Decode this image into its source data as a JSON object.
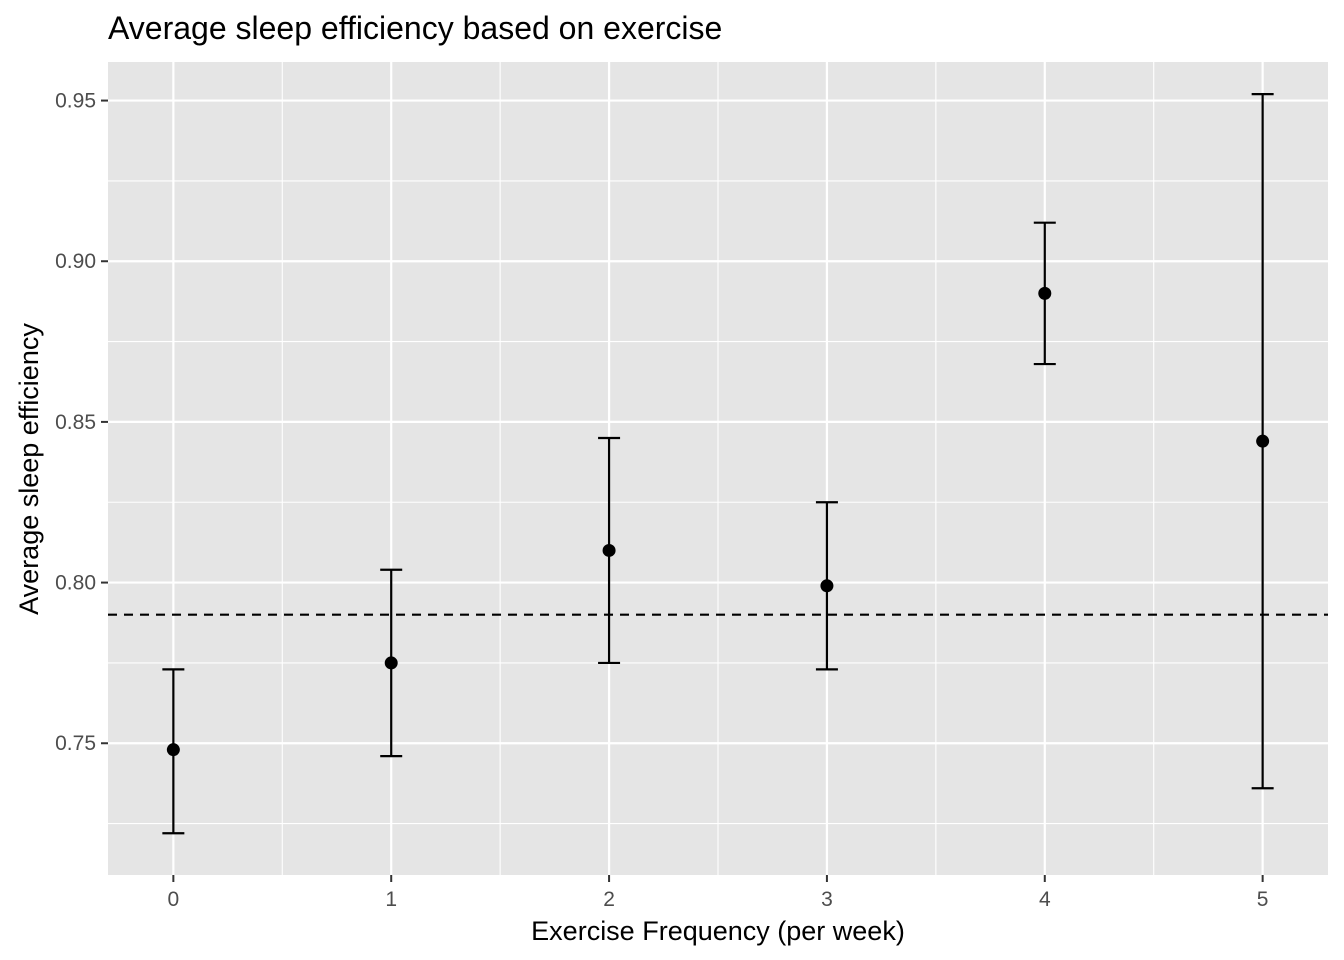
{
  "chart_data": {
    "type": "scatter",
    "title": "Average sleep efficiency based on exercise",
    "xlabel": "Exercise Frequency (per week)",
    "ylabel": "Average sleep efficiency",
    "x_ticks": [
      "0",
      "1",
      "2",
      "3",
      "4",
      "5"
    ],
    "y_ticks": [
      "0.75",
      "0.80",
      "0.85",
      "0.90",
      "0.95"
    ],
    "xlim": [
      -0.3,
      5.3
    ],
    "ylim": [
      0.709,
      0.962
    ],
    "grid": true,
    "reference_line": {
      "y": 0.79,
      "style": "dashed"
    },
    "x": [
      0,
      1,
      2,
      3,
      4,
      5
    ],
    "y": [
      0.748,
      0.775,
      0.81,
      0.799,
      0.89,
      0.844
    ],
    "error_low": [
      0.722,
      0.746,
      0.775,
      0.773,
      0.868,
      0.736
    ],
    "error_high": [
      0.773,
      0.804,
      0.845,
      0.825,
      0.912,
      0.952
    ],
    "colors": {
      "panel_background": "#e5e5e5",
      "grid": "#ffffff",
      "marks": "#000000",
      "tick_text": "#4d4d4d",
      "tick_mark": "#333333"
    }
  }
}
